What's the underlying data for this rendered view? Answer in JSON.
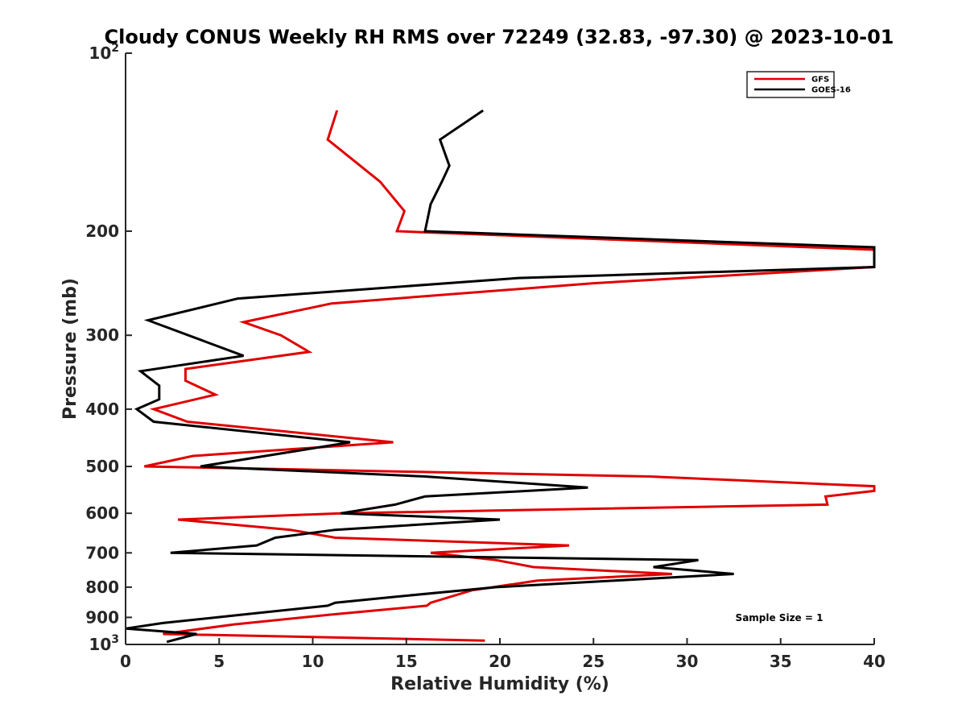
{
  "chart_data": {
    "type": "line",
    "title": "Cloudy CONUS Weekly RH RMS over 72249 (32.83, -97.30) @ 2023-10-01",
    "xlabel": "Relative Humidity (%)",
    "ylabel": "Pressure (mb)",
    "xlim": [
      0,
      40
    ],
    "ylim": [
      100,
      1000
    ],
    "y_scale": "log",
    "y_reversed": true,
    "grid": false,
    "legend_position": "top-right",
    "x_ticks": [
      "0",
      "5",
      "10",
      "15",
      "20",
      "25",
      "30",
      "35",
      "40"
    ],
    "y_ticks": [
      {
        "value": 100,
        "base": "10",
        "exp": "2"
      },
      {
        "value": 200,
        "label": "200"
      },
      {
        "value": 300,
        "label": "300"
      },
      {
        "value": 400,
        "label": "400"
      },
      {
        "value": 500,
        "label": "500"
      },
      {
        "value": 600,
        "label": "600"
      },
      {
        "value": 700,
        "label": "700"
      },
      {
        "value": 800,
        "label": "800"
      },
      {
        "value": 900,
        "label": "900"
      },
      {
        "value": 1000,
        "base": "10",
        "exp": "3"
      }
    ],
    "annotation": "Sample Size = 1",
    "series": [
      {
        "name": "GFS",
        "color": "#e00000",
        "points": [
          {
            "x": 11.3,
            "p": 125
          },
          {
            "x": 10.8,
            "p": 140
          },
          {
            "x": 13.6,
            "p": 165
          },
          {
            "x": 14.9,
            "p": 185
          },
          {
            "x": 14.5,
            "p": 200
          },
          {
            "x": 40,
            "p": 215
          },
          {
            "x": 40,
            "p": 230
          },
          {
            "x": 25,
            "p": 245
          },
          {
            "x": 11,
            "p": 265
          },
          {
            "x": 6.3,
            "p": 285
          },
          {
            "x": 8.3,
            "p": 300
          },
          {
            "x": 9.8,
            "p": 320
          },
          {
            "x": 3.2,
            "p": 342
          },
          {
            "x": 3.2,
            "p": 358
          },
          {
            "x": 4.8,
            "p": 378
          },
          {
            "x": 1.5,
            "p": 400
          },
          {
            "x": 3.3,
            "p": 420
          },
          {
            "x": 14.3,
            "p": 455
          },
          {
            "x": 3.6,
            "p": 480
          },
          {
            "x": 1.0,
            "p": 500
          },
          {
            "x": 28,
            "p": 520
          },
          {
            "x": 40,
            "p": 540
          },
          {
            "x": 40,
            "p": 550
          },
          {
            "x": 37.4,
            "p": 562
          },
          {
            "x": 37.5,
            "p": 580
          },
          {
            "x": 11.5,
            "p": 600
          },
          {
            "x": 2.8,
            "p": 615
          },
          {
            "x": 8.8,
            "p": 640
          },
          {
            "x": 11.2,
            "p": 660
          },
          {
            "x": 23.7,
            "p": 680
          },
          {
            "x": 16.3,
            "p": 700
          },
          {
            "x": 19.8,
            "p": 720
          },
          {
            "x": 21.8,
            "p": 740
          },
          {
            "x": 29.2,
            "p": 760
          },
          {
            "x": 22,
            "p": 780
          },
          {
            "x": 18.5,
            "p": 810
          },
          {
            "x": 16.3,
            "p": 850
          },
          {
            "x": 16.1,
            "p": 860
          },
          {
            "x": 11,
            "p": 890
          },
          {
            "x": 5.8,
            "p": 925
          },
          {
            "x": 2,
            "p": 960
          },
          {
            "x": 19.2,
            "p": 985
          }
        ]
      },
      {
        "name": "GOES-16",
        "color": "#000000",
        "points": [
          {
            "x": 19.1,
            "p": 125
          },
          {
            "x": 16.8,
            "p": 140
          },
          {
            "x": 17.3,
            "p": 155
          },
          {
            "x": 16.9,
            "p": 165
          },
          {
            "x": 16.3,
            "p": 180
          },
          {
            "x": 16.0,
            "p": 200
          },
          {
            "x": 40,
            "p": 213
          },
          {
            "x": 40,
            "p": 230
          },
          {
            "x": 21,
            "p": 240
          },
          {
            "x": 6,
            "p": 260
          },
          {
            "x": 1.2,
            "p": 283
          },
          {
            "x": 6.3,
            "p": 325
          },
          {
            "x": 0.8,
            "p": 345
          },
          {
            "x": 1.8,
            "p": 365
          },
          {
            "x": 1.8,
            "p": 385
          },
          {
            "x": 0.6,
            "p": 400
          },
          {
            "x": 1.5,
            "p": 420
          },
          {
            "x": 12,
            "p": 455
          },
          {
            "x": 4,
            "p": 500
          },
          {
            "x": 16,
            "p": 520
          },
          {
            "x": 24.7,
            "p": 543
          },
          {
            "x": 16,
            "p": 562
          },
          {
            "x": 14.4,
            "p": 580
          },
          {
            "x": 11.5,
            "p": 600
          },
          {
            "x": 20,
            "p": 615
          },
          {
            "x": 11.2,
            "p": 640
          },
          {
            "x": 8,
            "p": 660
          },
          {
            "x": 7,
            "p": 680
          },
          {
            "x": 2.4,
            "p": 700
          },
          {
            "x": 30.6,
            "p": 720
          },
          {
            "x": 28.2,
            "p": 740
          },
          {
            "x": 32.5,
            "p": 760
          },
          {
            "x": 19.8,
            "p": 800
          },
          {
            "x": 14.5,
            "p": 830
          },
          {
            "x": 11.2,
            "p": 850
          },
          {
            "x": 10.8,
            "p": 860
          },
          {
            "x": 7,
            "p": 885
          },
          {
            "x": 2,
            "p": 920
          },
          {
            "x": 0,
            "p": 940
          },
          {
            "x": 3.8,
            "p": 960
          },
          {
            "x": 2.2,
            "p": 990
          }
        ]
      }
    ]
  }
}
